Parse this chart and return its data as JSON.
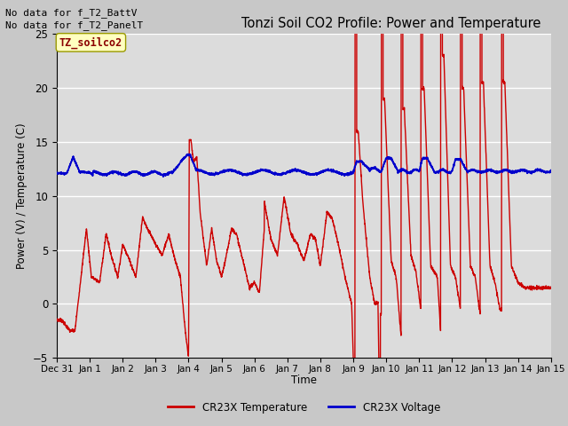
{
  "title": "Tonzi Soil CO2 Profile: Power and Temperature",
  "xlabel": "Time",
  "ylabel": "Power (V) / Temperature (C)",
  "ylim": [
    -5,
    25
  ],
  "yticks": [
    -5,
    0,
    5,
    10,
    15,
    20,
    25
  ],
  "fig_bg_color": "#cccccc",
  "plot_bg_color": "#e0e0e0",
  "no_data_text1": "No data for f_T2_BattV",
  "no_data_text2": "No data for f_T2_PanelT",
  "legend_label_box": "TZ_soilco2",
  "legend_red": "CR23X Temperature",
  "legend_blue": "CR23X Voltage",
  "red_color": "#cc0000",
  "blue_color": "#0000cc",
  "xtick_labels": [
    "Dec 31",
    "Jan 1",
    "Jan 2",
    "Jan 3",
    "Jan 4",
    "Jan 5",
    "Jan 6",
    "Jan 7",
    "Jan 8",
    "Jan 9",
    "Jan 10",
    "Jan 11",
    "Jan 12",
    "Jan 13",
    "Jan 14",
    "Jan 15"
  ],
  "xtick_positions": [
    0,
    1,
    2,
    3,
    4,
    5,
    6,
    7,
    8,
    9,
    10,
    11,
    12,
    13,
    14,
    15
  ]
}
